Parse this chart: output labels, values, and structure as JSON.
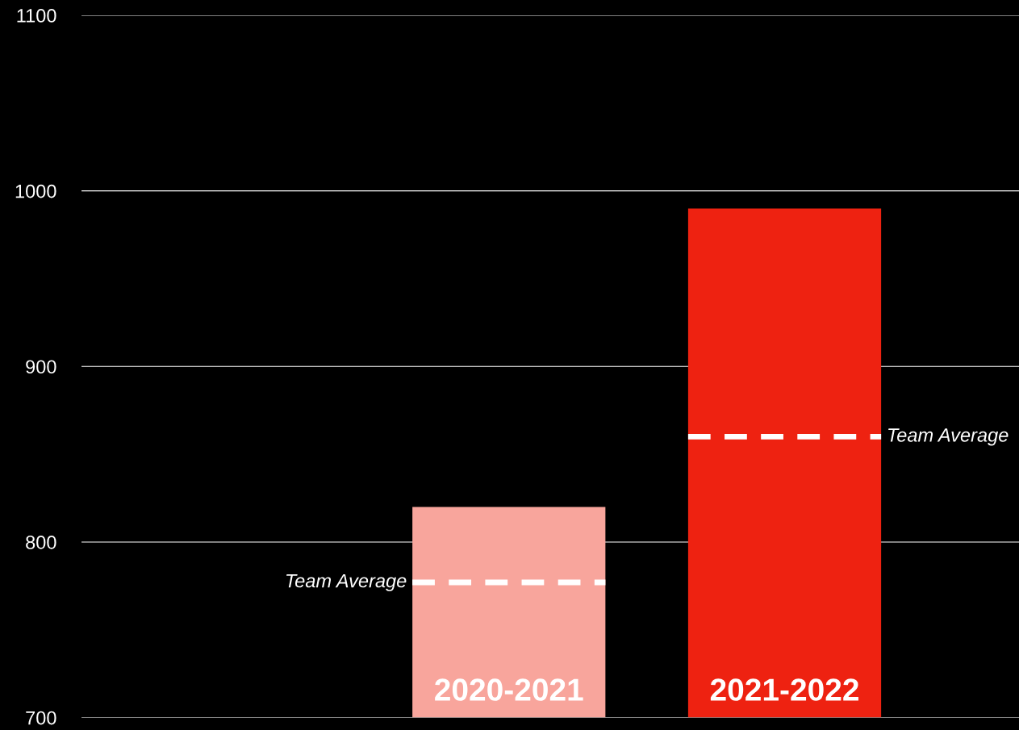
{
  "chart_data": {
    "type": "bar",
    "categories": [
      "2020-2021",
      "2021-2022"
    ],
    "values": [
      820,
      990
    ],
    "colors": [
      "#f8a59c",
      "#ee2211"
    ],
    "ylim": [
      700,
      1100
    ],
    "yticks": [
      700,
      800,
      900,
      1000,
      1100
    ],
    "grid": "y",
    "ref_lines": [
      {
        "axis": "y",
        "value": 777,
        "label": "Team Average",
        "color": "#ffffff",
        "line_style": "dashed"
      },
      {
        "axis": "y",
        "value": 860,
        "label": "Team Average",
        "color": "#ffffff",
        "line_style": "dashed"
      }
    ]
  }
}
